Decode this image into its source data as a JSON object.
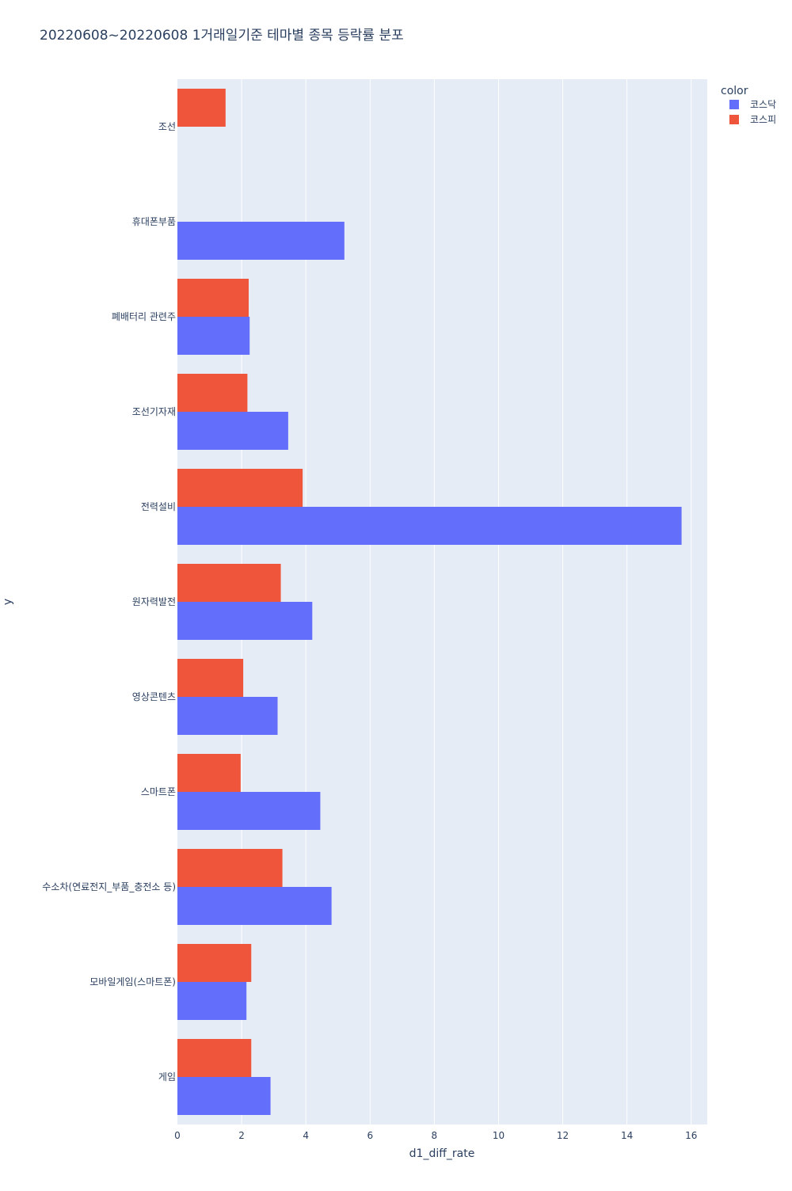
{
  "chart_data": {
    "type": "bar",
    "orientation": "horizontal",
    "barmode": "group",
    "title": "20220608~20220608 1거래일기준 테마별 종목 등락률 분포",
    "xlabel": "d1_diff_rate",
    "ylabel": "y",
    "xlim": [
      0,
      16.5
    ],
    "xticks": [
      0,
      2,
      4,
      6,
      8,
      10,
      12,
      14,
      16
    ],
    "grid": true,
    "plot_bg": "#e5ecf6",
    "legend": {
      "title": "color",
      "placement": "top-right"
    },
    "categories": [
      "게임",
      "모바일게임(스마트폰)",
      "수소차(연료전지_부품_충전소 등)",
      "스마트폰",
      "영상콘텐츠",
      "원자력발전",
      "전력설비",
      "조선기자재",
      "폐배터리 관련주",
      "휴대폰부품",
      "조선"
    ],
    "series": [
      {
        "name": "코스닥",
        "color": "#636efa",
        "values": [
          2.9,
          2.15,
          4.8,
          4.45,
          3.12,
          4.2,
          15.7,
          3.45,
          2.25,
          5.2,
          null
        ]
      },
      {
        "name": "코스피",
        "color": "#ef553b",
        "values": [
          2.3,
          2.3,
          3.27,
          1.97,
          2.05,
          3.22,
          3.9,
          2.18,
          2.22,
          null,
          1.5
        ]
      }
    ]
  }
}
